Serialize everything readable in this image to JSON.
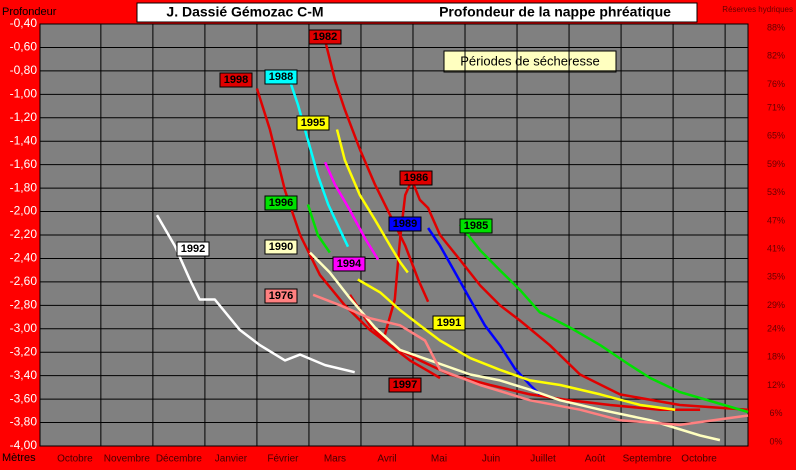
{
  "chart_data": {
    "type": "line",
    "title": "J. Dassié  Gémozac  C-M",
    "subtitle": "Profondeur de la nappe phréatique",
    "annotation": "Périodes de sécheresse",
    "ylabel": "Profondeur",
    "xlabel": "Mètres",
    "y2label": "Réserves hydriques",
    "grid": true,
    "xlim": [
      -0.67,
      12.94
    ],
    "xticks": [
      {
        "value": 0,
        "label": "Octobre"
      },
      {
        "value": 1,
        "label": "Novembre"
      },
      {
        "value": 2,
        "label": "Décembre"
      },
      {
        "value": 3,
        "label": "Janvier"
      },
      {
        "value": 4,
        "label": "Février"
      },
      {
        "value": 5,
        "label": "Mars"
      },
      {
        "value": 6,
        "label": "Avril"
      },
      {
        "value": 7,
        "label": "Mai"
      },
      {
        "value": 8,
        "label": "Juin"
      },
      {
        "value": 9,
        "label": "Juillet"
      },
      {
        "value": 10,
        "label": "Août"
      },
      {
        "value": 11,
        "label": "Septembre"
      },
      {
        "value": 12,
        "label": "Octobre"
      }
    ],
    "ylim": [
      -4.0,
      -0.4
    ],
    "yticks": [
      {
        "value": -0.4,
        "label": "-0,40"
      },
      {
        "value": -0.6,
        "label": "-0,60"
      },
      {
        "value": -0.8,
        "label": "-0,80"
      },
      {
        "value": -1.0,
        "label": "-1,00"
      },
      {
        "value": -1.2,
        "label": "-1,20"
      },
      {
        "value": -1.4,
        "label": "-1,40"
      },
      {
        "value": -1.6,
        "label": "-1,60"
      },
      {
        "value": -1.8,
        "label": "-1,80"
      },
      {
        "value": -2.0,
        "label": "-2,00"
      },
      {
        "value": -2.2,
        "label": "-2,20"
      },
      {
        "value": -2.4,
        "label": "-2,40"
      },
      {
        "value": -2.6,
        "label": "-2,60"
      },
      {
        "value": -2.8,
        "label": "-2,80"
      },
      {
        "value": -3.0,
        "label": "-3,00"
      },
      {
        "value": -3.2,
        "label": "-3,20"
      },
      {
        "value": -3.4,
        "label": "-3,40"
      },
      {
        "value": -3.6,
        "label": "-3,60"
      },
      {
        "value": -3.8,
        "label": "-3,80"
      },
      {
        "value": -4.0,
        "label": "-4,00"
      }
    ],
    "y2lim": [
      -0.85,
      88.85
    ],
    "y2ticks": [
      {
        "value": 88,
        "label": "88%"
      },
      {
        "value": 82,
        "label": "82%"
      },
      {
        "value": 76,
        "label": "76%"
      },
      {
        "value": 71,
        "label": "71%"
      },
      {
        "value": 65,
        "label": "65%"
      },
      {
        "value": 59,
        "label": "59%"
      },
      {
        "value": 53,
        "label": "53%"
      },
      {
        "value": 47,
        "label": "47%"
      },
      {
        "value": 41,
        "label": "41%"
      },
      {
        "value": 35,
        "label": "35%"
      },
      {
        "value": 29,
        "label": "29%"
      },
      {
        "value": 24,
        "label": "24%"
      },
      {
        "value": 18,
        "label": "18%"
      },
      {
        "value": 12,
        "label": "12%"
      },
      {
        "value": 6,
        "label": "6%"
      },
      {
        "value": 0,
        "label": "0%"
      }
    ],
    "series": [
      {
        "name": "1992",
        "color": "#ffffff",
        "x": [
          1.58,
          1.92,
          2.21,
          2.4,
          2.69,
          3.17,
          3.56,
          4.04,
          4.33,
          4.81,
          5.38
        ],
        "values": [
          -2.03,
          -2.29,
          -2.58,
          -2.75,
          -2.75,
          -3.01,
          -3.14,
          -3.27,
          -3.22,
          -3.31,
          -3.37
        ]
      },
      {
        "name": "1998",
        "color": "#e00000",
        "x": [
          3.5,
          3.75,
          4.04,
          4.33,
          4.71,
          5.19,
          5.67,
          6.06,
          6.44,
          6.83,
          7.02
        ],
        "values": [
          -0.95,
          -1.3,
          -1.82,
          -2.2,
          -2.54,
          -2.8,
          -3.01,
          -3.14,
          -3.27,
          -3.37,
          -3.42
        ]
      },
      {
        "name": "1982",
        "color": "#e00000",
        "x": [
          4.81,
          5.0,
          5.19,
          5.48,
          5.77,
          6.06,
          6.35,
          6.6,
          6.79
        ],
        "values": [
          -0.54,
          -0.88,
          -1.13,
          -1.47,
          -1.77,
          -2.03,
          -2.29,
          -2.58,
          -2.77
        ]
      },
      {
        "name": "1986",
        "color": "#e00000",
        "x": [
          5.96,
          6.15,
          6.25,
          6.35,
          6.48,
          6.63,
          6.79,
          7.02,
          7.4,
          7.79,
          8.17,
          8.56,
          9.13,
          9.71,
          10.48,
          11.63,
          12.94
        ],
        "values": [
          -3.05,
          -2.75,
          -2.24,
          -1.86,
          -1.73,
          -1.9,
          -1.97,
          -2.2,
          -2.41,
          -2.63,
          -2.8,
          -2.93,
          -3.14,
          -3.39,
          -3.56,
          -3.65,
          -3.69
        ]
      },
      {
        "name": "1997",
        "color": "#e00000",
        "x": [
          5.29,
          5.67,
          6.06,
          6.63,
          7.21,
          7.98,
          8.75,
          9.52,
          10.29,
          11.25,
          12.02
        ],
        "values": [
          -2.71,
          -2.97,
          -3.14,
          -3.27,
          -3.39,
          -3.48,
          -3.56,
          -3.61,
          -3.65,
          -3.69,
          -3.69
        ]
      },
      {
        "name": "1988",
        "color": "#00ffff",
        "x": [
          3.65,
          4.13,
          4.29,
          4.48,
          4.67,
          4.87,
          5.1,
          5.25
        ],
        "values": [
          -0.86,
          -0.88,
          -1.09,
          -1.39,
          -1.69,
          -1.94,
          -2.16,
          -2.3
        ]
      },
      {
        "name": "1995",
        "color": "#ffff00",
        "x": [
          5.04,
          5.19,
          5.48,
          5.77,
          6.06,
          6.25,
          6.4
        ],
        "values": [
          -1.3,
          -1.56,
          -1.86,
          -2.07,
          -2.29,
          -2.43,
          -2.52
        ]
      },
      {
        "name": "1994",
        "color": "#ff00ff",
        "x": [
          4.81,
          5.0,
          5.29,
          5.58,
          5.83
        ],
        "values": [
          -1.58,
          -1.77,
          -1.99,
          -2.23,
          -2.41
        ]
      },
      {
        "name": "1996",
        "color": "#00e000",
        "x": [
          4.48,
          4.67,
          4.9
        ],
        "values": [
          -1.94,
          -2.2,
          -2.35
        ]
      },
      {
        "name": "1989",
        "color": "#0000ff",
        "x": [
          6.79,
          7.02,
          7.31,
          7.6,
          7.88,
          8.17,
          8.46,
          8.75,
          8.94
        ],
        "values": [
          -2.14,
          -2.29,
          -2.52,
          -2.75,
          -2.97,
          -3.14,
          -3.34,
          -3.48,
          -3.56
        ]
      },
      {
        "name": "1985",
        "color": "#00e000",
        "x": [
          7.4,
          7.79,
          8.17,
          8.56,
          8.94,
          9.04,
          9.52,
          10.1,
          10.67,
          11.06,
          11.63,
          12.94
        ],
        "values": [
          -2.11,
          -2.33,
          -2.5,
          -2.67,
          -2.86,
          -2.88,
          -2.99,
          -3.14,
          -3.31,
          -3.42,
          -3.54,
          -3.71
        ]
      },
      {
        "name": "1990",
        "color": "#ffffc0",
        "x": [
          4.52,
          4.9,
          5.29,
          5.77,
          6.25,
          6.83,
          7.6,
          8.17,
          8.75,
          9.33,
          10.1,
          11.06,
          12.02,
          12.4
        ],
        "values": [
          -2.35,
          -2.52,
          -2.74,
          -2.99,
          -3.18,
          -3.27,
          -3.39,
          -3.44,
          -3.52,
          -3.61,
          -3.69,
          -3.78,
          -3.91,
          -3.95
        ]
      },
      {
        "name": "1976",
        "color": "#ff8080",
        "x": [
          4.58,
          5.1,
          5.67,
          6.25,
          6.73,
          7.02,
          7.79,
          8.75,
          9.71,
          10.48,
          11.63,
          12.94
        ],
        "values": [
          -2.71,
          -2.8,
          -2.91,
          -2.97,
          -3.1,
          -3.35,
          -3.48,
          -3.61,
          -3.69,
          -3.78,
          -3.82,
          -3.74
        ]
      },
      {
        "name": "1991",
        "color": "#ffff00",
        "x": [
          5.44,
          5.87,
          6.25,
          6.63,
          7.02,
          7.6,
          8.17,
          8.75,
          9.33,
          10.1,
          10.87,
          11.54
        ],
        "values": [
          -2.58,
          -2.69,
          -2.84,
          -2.97,
          -3.1,
          -3.25,
          -3.35,
          -3.44,
          -3.48,
          -3.56,
          -3.65,
          -3.69
        ]
      }
    ]
  }
}
